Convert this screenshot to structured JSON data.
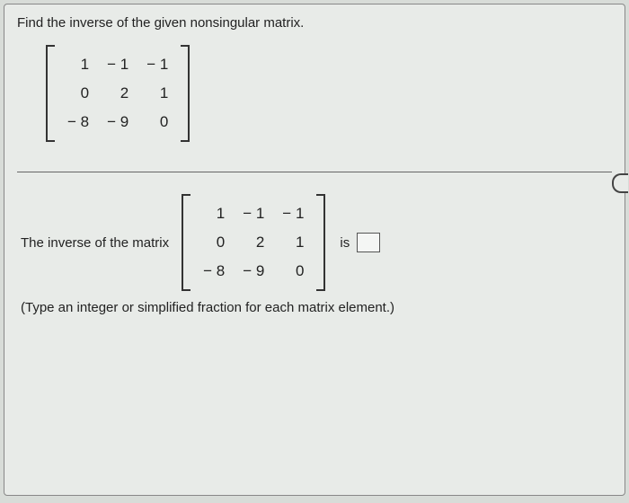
{
  "prompt": "Find the inverse of the given nonsingular matrix.",
  "matrix_top": {
    "rows": [
      [
        "1",
        "− 1",
        "− 1"
      ],
      [
        "0",
        "2",
        "1"
      ],
      [
        "− 8",
        "− 9",
        "0"
      ]
    ]
  },
  "answer_label_before": "The inverse of the matrix",
  "matrix_inline": {
    "rows": [
      [
        "1",
        "− 1",
        "− 1"
      ],
      [
        "0",
        "2",
        "1"
      ],
      [
        "− 8",
        "− 9",
        "0"
      ]
    ]
  },
  "is_text": "is",
  "hint": "(Type an integer or simplified fraction for each matrix element.)",
  "colors": {
    "page_bg": "#e8ebe8",
    "body_bg": "#d8dcd8",
    "text": "#222222",
    "bracket": "#333333",
    "divider": "#666666",
    "input_border": "#555555",
    "input_bg": "#f4f6f4"
  },
  "typography": {
    "prompt_fontsize": 15,
    "matrix_fontsize": 17,
    "answer_fontsize": 15,
    "hint_fontsize": 15,
    "font_family": "Arial"
  }
}
